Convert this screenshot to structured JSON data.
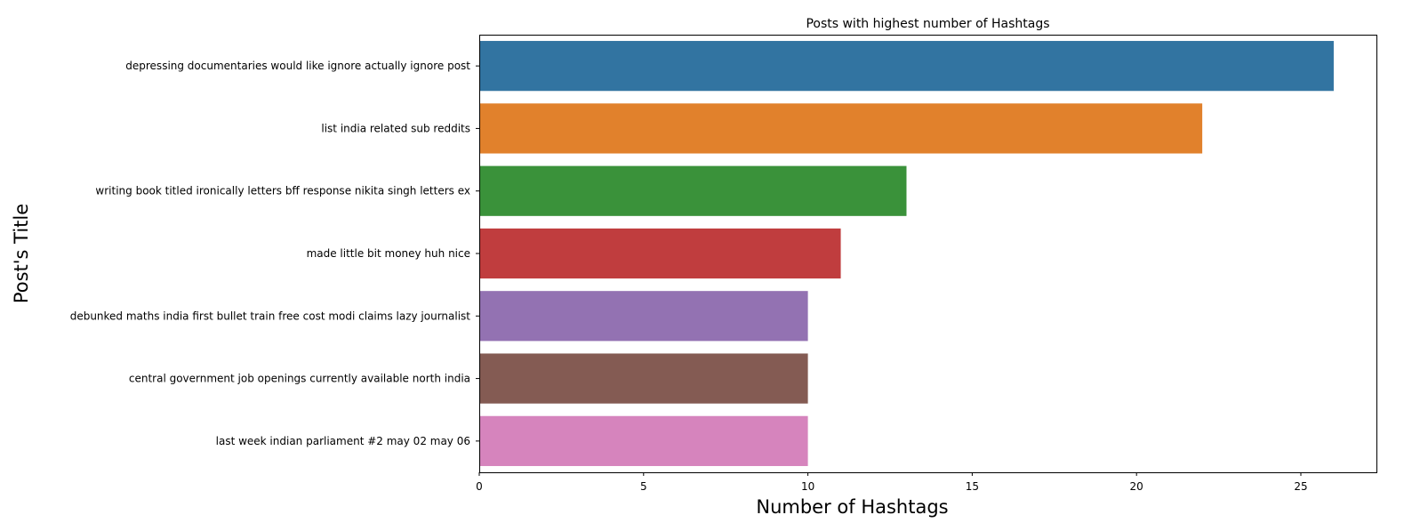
{
  "chart_data": {
    "type": "bar",
    "orientation": "horizontal",
    "title": "Posts with highest number of Hashtags",
    "xlabel": "Number of Hashtags",
    "ylabel": "Post's Title",
    "categories": [
      "depressing documentaries would like ignore actually ignore post",
      "list india related sub reddits",
      "writing book titled ironically letters bff response nikita singh letters ex",
      "made little bit money huh nice",
      "debunked maths india first bullet train free cost modi claims lazy journalist",
      "central government job openings currently available north india",
      "last week indian parliament #2 may 02 may 06"
    ],
    "values": [
      26,
      22,
      13,
      11,
      10,
      10,
      10
    ],
    "colors": [
      "#3274a1",
      "#e1812c",
      "#3a923a",
      "#c03d3e",
      "#9372b2",
      "#845b53",
      "#d684bd"
    ],
    "xlim": [
      0,
      27.3
    ],
    "xticks": [
      0,
      5,
      10,
      15,
      20,
      25
    ],
    "xtick_labels": [
      "0",
      "5",
      "10",
      "15",
      "20",
      "25"
    ],
    "grid": false,
    "legend": "none"
  }
}
